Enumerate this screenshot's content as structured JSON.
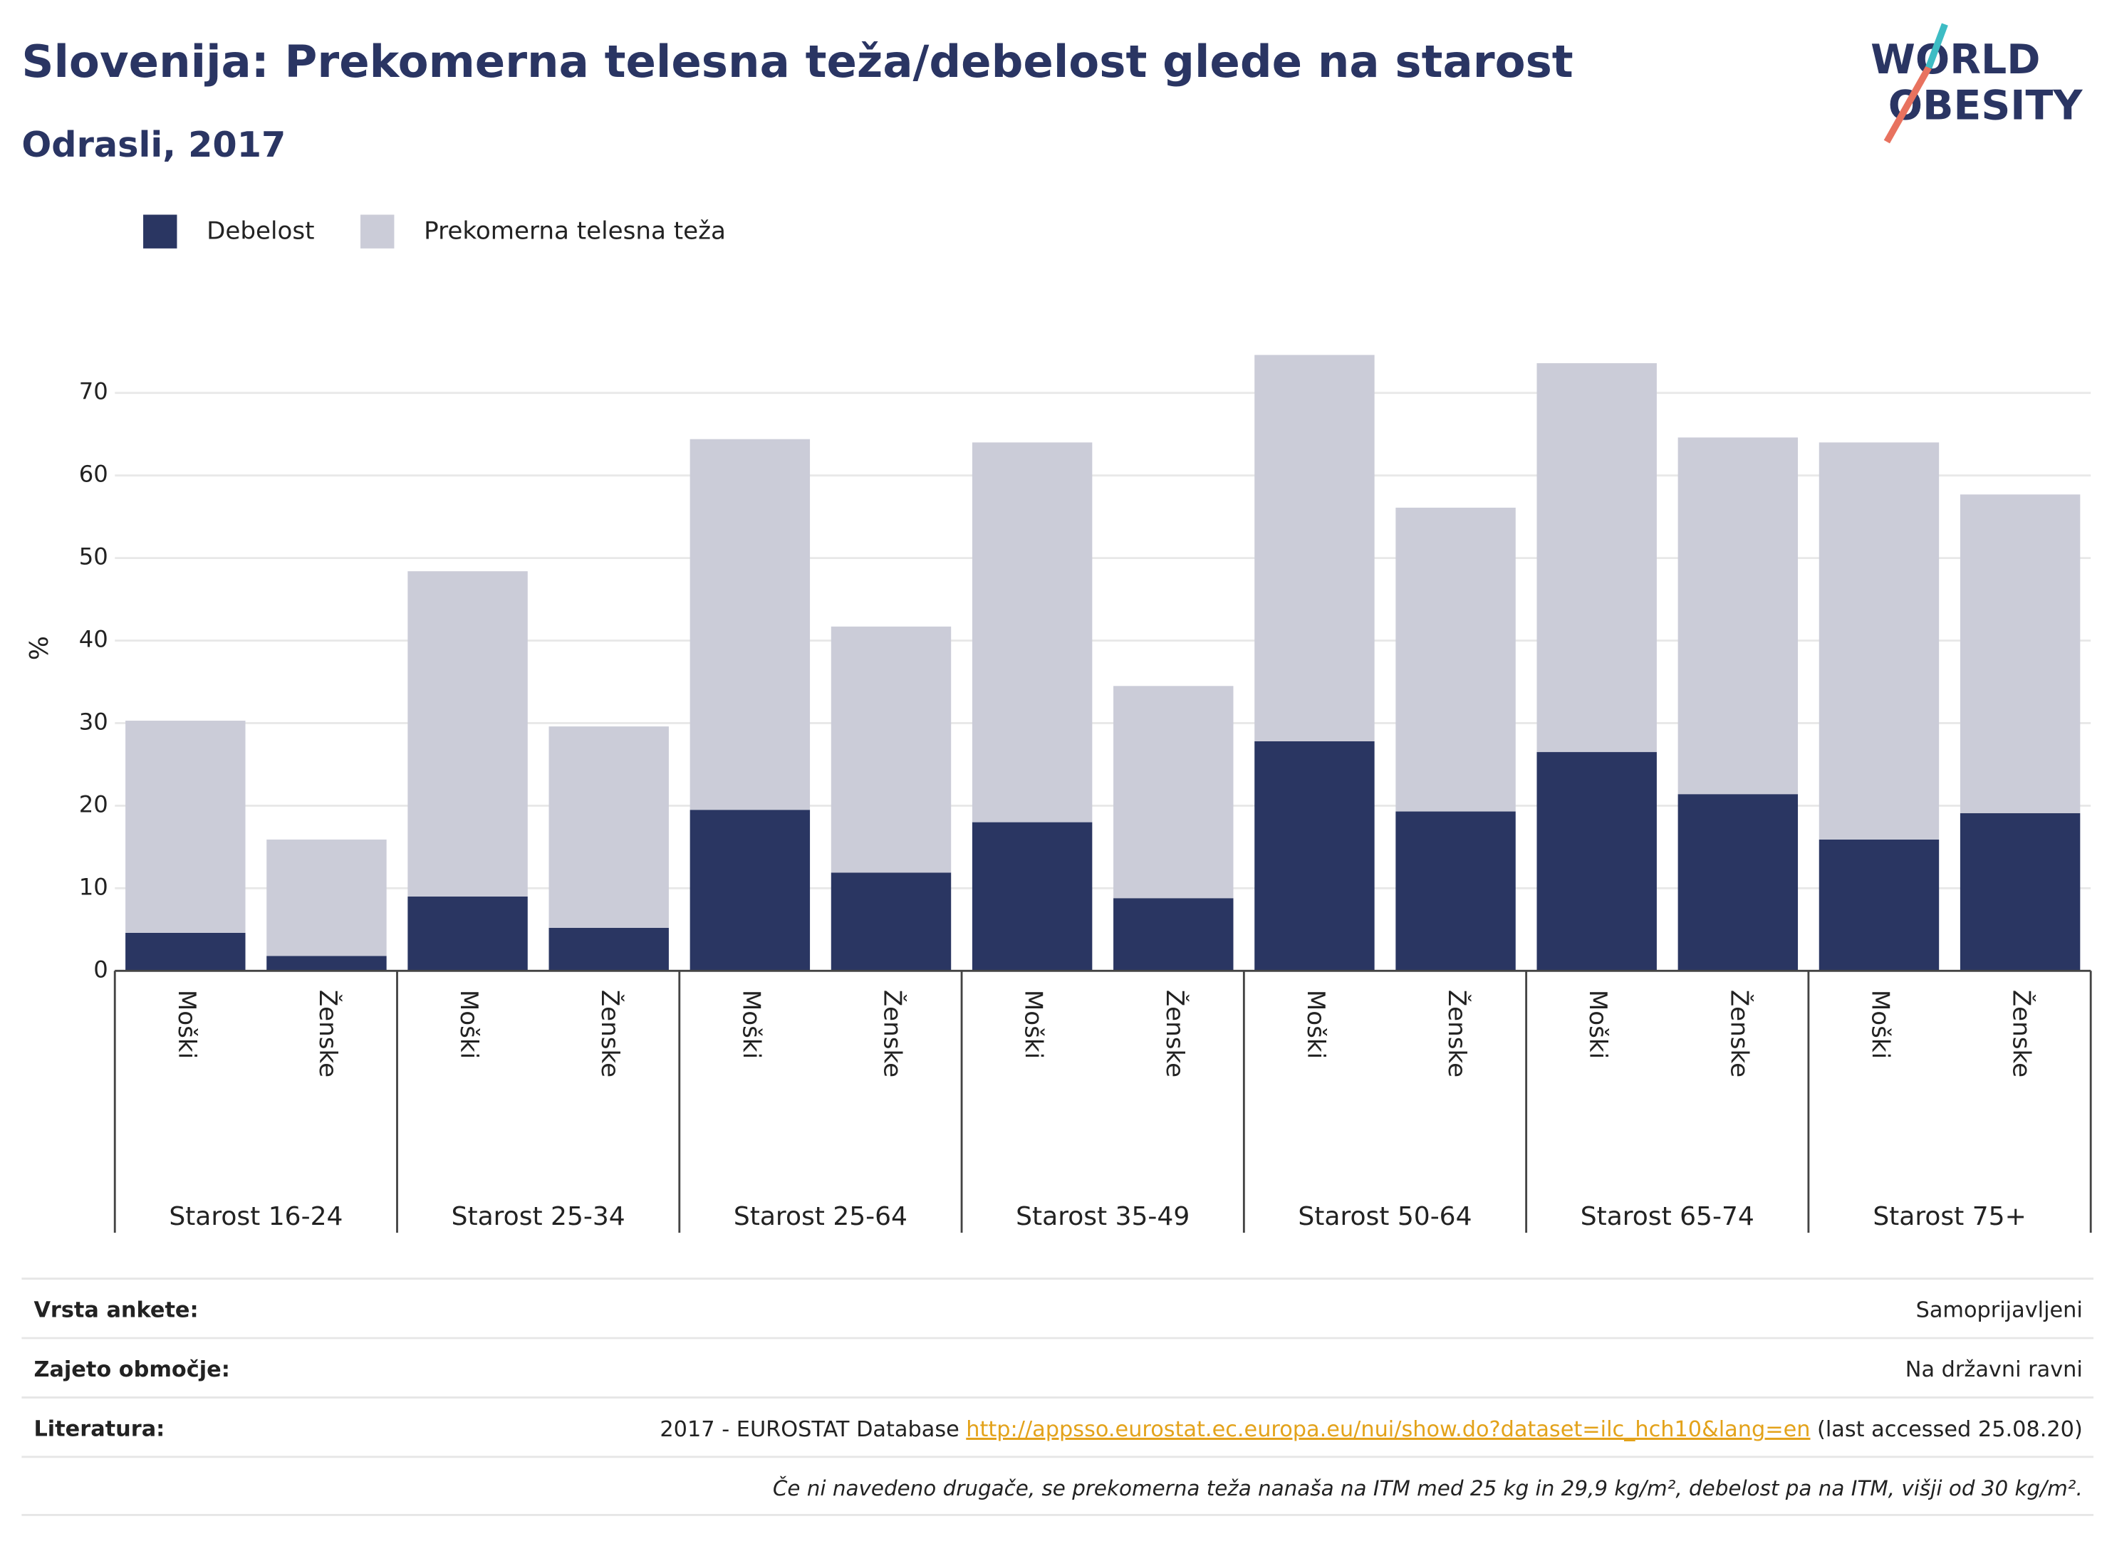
{
  "chart_data": {
    "type": "stacked_bar",
    "title": "Slovenija: Prekomerna telesna teža/debelost glede na starost",
    "subtitle": "Odrasli, 2017",
    "y_label": "%",
    "groups": [
      "Starost 16-24",
      "Starost 25-34",
      "Starost 25-64",
      "Starost 35-49",
      "Starost 50-64",
      "Starost 65-74",
      "Starost 75+"
    ],
    "categories": [
      "Moški",
      "Ženske",
      "Moški",
      "Ženske",
      "Moški",
      "Ženske",
      "Moški",
      "Ženske",
      "Moški",
      "Ženske",
      "Moški",
      "Ženske",
      "Moški",
      "Ženske"
    ],
    "series": [
      {
        "name": "Debelost",
        "color": "#2a3662",
        "values": [
          4.6,
          1.8,
          9.0,
          5.2,
          19.5,
          11.9,
          18.0,
          8.8,
          27.8,
          19.3,
          26.5,
          21.4,
          15.9,
          19.1
        ]
      },
      {
        "name": "Prekomerna telesna teža",
        "color": "#cbccd8",
        "values": [
          25.7,
          14.1,
          39.4,
          24.4,
          44.9,
          29.8,
          46.0,
          25.7,
          46.8,
          36.8,
          47.1,
          43.2,
          48.1,
          38.6
        ]
      }
    ],
    "ylim": [
      0,
      75
    ],
    "yticks": [
      0,
      10,
      20,
      30,
      40,
      50,
      60,
      70
    ],
    "grid": true,
    "legend": "top-left"
  },
  "logo": {
    "line1": "WORLD",
    "line2": "OBESITY"
  },
  "footer": {
    "rows": [
      {
        "label": "Vrsta ankete:",
        "value": "Samoprijavljeni"
      },
      {
        "label": "Zajeto območje:",
        "value": "Na državni ravni"
      },
      {
        "label": "Literatura:",
        "prefix": "2017 - EUROSTAT Database",
        "link": "http://appsso.eurostat.ec.europa.eu/nui/show.do?dataset=ilc_hch10&lang=en",
        "suffix": "(last accessed 25.08.20)"
      }
    ],
    "note": "Če ni navedeno drugače, se prekomerna teža nanaša na ITM med 25 kg in 29,9 kg/m², debelost pa na ITM, višji od 30 kg/m²."
  }
}
